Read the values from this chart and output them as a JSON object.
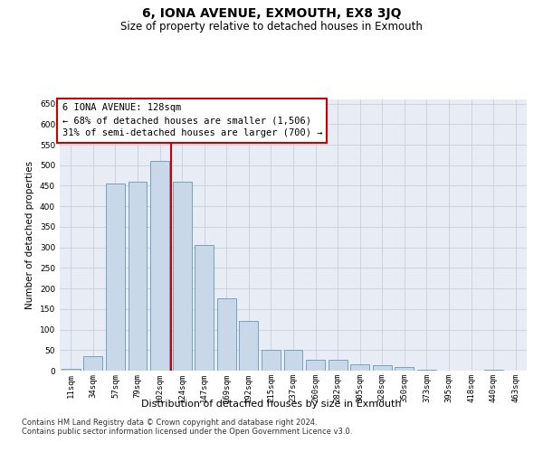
{
  "title": "6, IONA AVENUE, EXMOUTH, EX8 3JQ",
  "subtitle": "Size of property relative to detached houses in Exmouth",
  "xlabel": "Distribution of detached houses by size in Exmouth",
  "ylabel": "Number of detached properties",
  "categories": [
    "11sqm",
    "34sqm",
    "57sqm",
    "79sqm",
    "102sqm",
    "124sqm",
    "147sqm",
    "169sqm",
    "192sqm",
    "215sqm",
    "237sqm",
    "260sqm",
    "282sqm",
    "305sqm",
    "328sqm",
    "350sqm",
    "373sqm",
    "395sqm",
    "418sqm",
    "440sqm",
    "463sqm"
  ],
  "values": [
    5,
    35,
    455,
    460,
    510,
    460,
    305,
    175,
    120,
    50,
    50,
    27,
    27,
    15,
    13,
    8,
    3,
    1,
    1,
    3,
    1
  ],
  "bar_color": "#c8d8e8",
  "bar_edge_color": "#6699bb",
  "vline_x_index": 5,
  "vline_color": "#cc0000",
  "annotation_text": "6 IONA AVENUE: 128sqm\n← 68% of detached houses are smaller (1,506)\n31% of semi-detached houses are larger (700) →",
  "annotation_box_color": "#ffffff",
  "annotation_box_edge_color": "#cc0000",
  "ylim": [
    0,
    660
  ],
  "yticks": [
    0,
    50,
    100,
    150,
    200,
    250,
    300,
    350,
    400,
    450,
    500,
    550,
    600,
    650
  ],
  "grid_color": "#c8d0dc",
  "background_color": "#e8edf5",
  "footer_line1": "Contains HM Land Registry data © Crown copyright and database right 2024.",
  "footer_line2": "Contains public sector information licensed under the Open Government Licence v3.0.",
  "title_fontsize": 10,
  "subtitle_fontsize": 8.5,
  "xlabel_fontsize": 8,
  "ylabel_fontsize": 7.5,
  "tick_fontsize": 6.5,
  "annotation_fontsize": 7.5,
  "footer_fontsize": 6
}
